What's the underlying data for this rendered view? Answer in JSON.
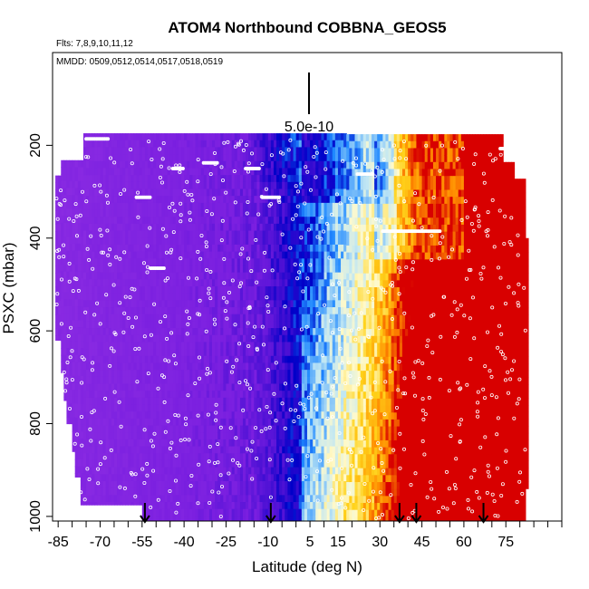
{
  "chart_data": {
    "type": "heatmap",
    "title": "ATOM4 Northbound COBBNA_GEOS5",
    "flights_label": "Flts: 7,8,9,10,11,12",
    "dates_label": "MMDD: 0509,0512,0514,0517,0518,0519",
    "xlabel": "Latitude (deg N)",
    "ylabel": "PSXC (mbar)",
    "xlim": [
      -87,
      95
    ],
    "ylim": [
      1010,
      0
    ],
    "x_ticks": [
      -85,
      -70,
      -55,
      -40,
      -25,
      -10,
      5,
      15,
      30,
      45,
      60,
      75
    ],
    "x_minor_step": 5,
    "y_ticks": [
      200,
      400,
      600,
      800,
      1000
    ],
    "scale_label": "5.0e-10",
    "arrows_lat": [
      -54,
      -9,
      37,
      43,
      67
    ],
    "colors": {
      "low": "#8a2be2",
      "mid": "#0000c8",
      "high": "#cc0000",
      "points": "#ffffff"
    },
    "color_stops": [
      {
        "value": 0.0,
        "color": "#8a2be2"
      },
      {
        "value": 0.28,
        "color": "#7a1fe0"
      },
      {
        "value": 0.42,
        "color": "#4a10d4"
      },
      {
        "value": 0.52,
        "color": "#0000c8"
      },
      {
        "value": 0.6,
        "color": "#1e88ff"
      },
      {
        "value": 0.68,
        "color": "#bfe6f4"
      },
      {
        "value": 0.76,
        "color": "#fffacc"
      },
      {
        "value": 0.84,
        "color": "#ffd21a"
      },
      {
        "value": 0.92,
        "color": "#ff8a00"
      },
      {
        "value": 1.0,
        "color": "#d80000"
      }
    ]
  }
}
